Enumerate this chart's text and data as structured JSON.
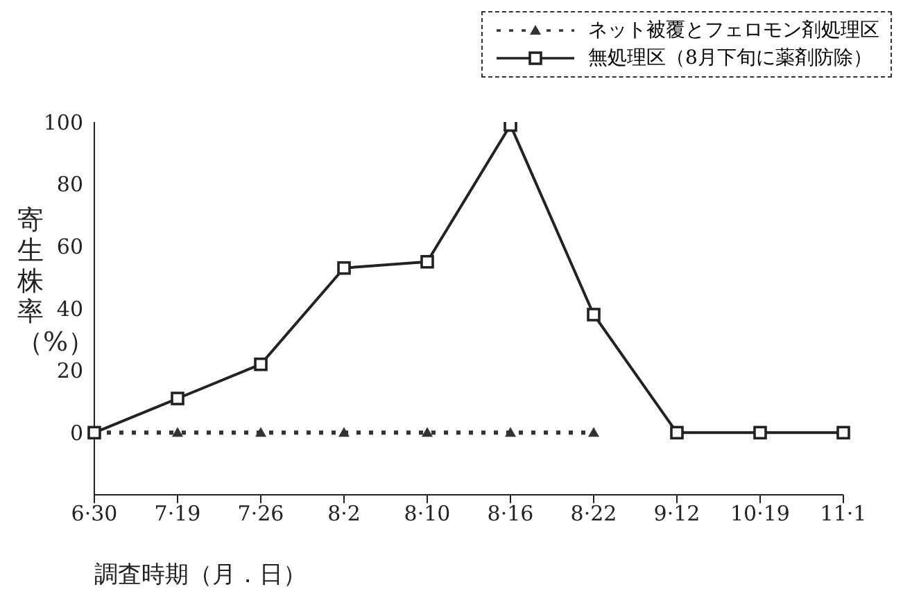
{
  "chart_data": {
    "type": "line",
    "xlabel": "調査時期（月．日）",
    "ylabel": "寄生株率（%）",
    "categories": [
      "6·30",
      "7·19",
      "7·26",
      "8·2",
      "8·10",
      "8·16",
      "8·22",
      "9·12",
      "10·19",
      "11·1"
    ],
    "series": [
      {
        "name": "ネット被覆とフェロモン剤処理区",
        "color": "#333333",
        "marker": "triangle",
        "line_style": "dotted",
        "values": [
          0,
          0,
          0,
          0,
          0,
          0,
          0,
          null,
          null,
          null
        ]
      },
      {
        "name": "無処理区（8月下旬に薬剤防除）",
        "color": "#222222",
        "marker": "square",
        "line_style": "solid",
        "values": [
          0,
          11,
          22,
          53,
          55,
          99,
          38,
          0,
          0,
          0
        ]
      }
    ],
    "ylim": [
      -20,
      100
    ],
    "yticks": [
      0,
      20,
      40,
      60,
      80,
      100
    ],
    "grid": false,
    "legend": "top right"
  }
}
